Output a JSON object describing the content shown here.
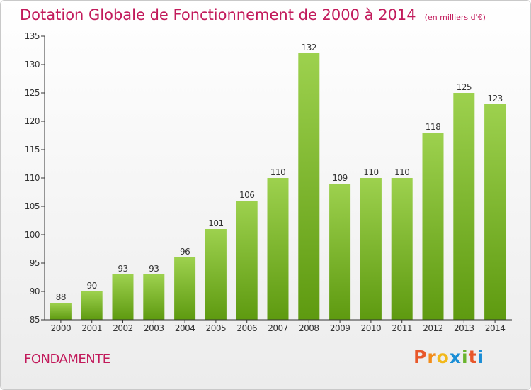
{
  "chart_data": {
    "type": "bar",
    "title": "Dotation Globale de Fonctionnement de 2000 à 2014",
    "subtitle": "(en milliers d'€)",
    "categories": [
      "2000",
      "2001",
      "2002",
      "2003",
      "2004",
      "2005",
      "2006",
      "2007",
      "2008",
      "2009",
      "2010",
      "2011",
      "2012",
      "2013",
      "2014"
    ],
    "values": [
      88,
      90,
      93,
      93,
      96,
      101,
      106,
      110,
      132,
      109,
      110,
      110,
      118,
      125,
      123
    ],
    "ylim": [
      85,
      135
    ],
    "yticks": [
      85,
      90,
      95,
      100,
      105,
      110,
      115,
      120,
      125,
      130,
      135
    ],
    "grid": false,
    "legend": "none",
    "bar_color_top": "#9dd14e",
    "bar_color_bottom": "#5e9a10"
  },
  "footer": {
    "town": "FONDAMENTE",
    "logo_letters": [
      "P",
      "r",
      "o",
      "x",
      "i",
      "t",
      "i"
    ],
    "logo_colors": [
      "#e8572a",
      "#f28c1a",
      "#f2b81a",
      "#1a8ed6",
      "#6ab42d",
      "#e8572a",
      "#1a8ed6"
    ]
  },
  "colors": {
    "title": "#c21a5b",
    "axis": "#333333",
    "label_text": "#333333"
  }
}
